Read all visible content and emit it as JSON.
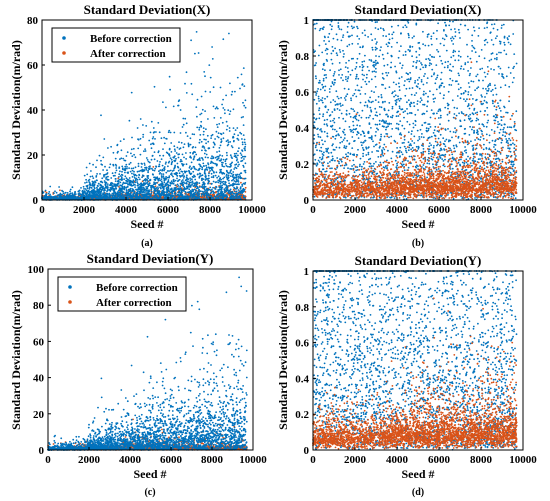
{
  "chart_data": [
    {
      "type": "scatter",
      "panel_label": "(a)",
      "title": "Standard Deviation(X)",
      "xlabel": "Seed #",
      "ylabel": "Standard Deviation(m/rad)",
      "xlim": [
        0,
        10000
      ],
      "ylim": [
        0,
        80
      ],
      "xticks": [
        0,
        2000,
        4000,
        6000,
        8000,
        10000
      ],
      "yticks": [
        0,
        20,
        40,
        60,
        80
      ],
      "x_tick_labels": [
        "0",
        "2000",
        "4000",
        "6000",
        "8000",
        "10000"
      ],
      "y_tick_labels": [
        "0",
        "20",
        "40",
        "60",
        "80"
      ],
      "legend": {
        "placement": "top-left",
        "entries": [
          "Before correction",
          "After correction"
        ]
      },
      "series": [
        {
          "name": "Before correction",
          "color": "#0072BD",
          "points": [
            [
              7100,
              71
            ],
            [
              8100,
              68
            ],
            [
              8900,
              74
            ],
            [
              6100,
              49
            ],
            [
              8500,
              50
            ],
            [
              7600,
              46
            ],
            [
              6600,
              40
            ],
            [
              9300,
              32
            ],
            [
              4700,
              36
            ],
            [
              5300,
              28
            ],
            [
              7900,
              36
            ],
            [
              6300,
              30
            ],
            [
              9500,
              20
            ],
            [
              2100,
              9
            ],
            [
              8800,
              21
            ]
          ]
        },
        {
          "name": "After correction",
          "color": "#D95319",
          "points": [
            [
              500,
              0.3
            ],
            [
              2500,
              0.5
            ],
            [
              5000,
              0.4
            ],
            [
              7500,
              0.6
            ],
            [
              9500,
              0.5
            ]
          ]
        }
      ]
    },
    {
      "type": "scatter",
      "panel_label": "(b)",
      "title": "Standard Deviation(X)",
      "xlabel": "Seed #",
      "ylabel": "Standard Deviation(m/rad)",
      "xlim": [
        0,
        10000
      ],
      "ylim": [
        0,
        1
      ],
      "xticks": [
        0,
        2000,
        4000,
        6000,
        8000,
        10000
      ],
      "yticks": [
        0,
        0.2,
        0.4,
        0.6,
        0.8,
        1
      ],
      "x_tick_labels": [
        "0",
        "2000",
        "4000",
        "6000",
        "8000",
        "10000"
      ],
      "y_tick_labels": [
        "0",
        "0.2",
        "0.4",
        "0.6",
        "0.8",
        "1"
      ],
      "series": [
        {
          "name": "Before correction",
          "color": "#0072BD",
          "points": [
            [
              800,
              0.6
            ],
            [
              1500,
              0.3
            ],
            [
              3000,
              0.8
            ],
            [
              5000,
              0.5
            ],
            [
              7000,
              0.9
            ],
            [
              9000,
              0.7
            ]
          ]
        },
        {
          "name": "After correction",
          "color": "#D95319",
          "points": [
            [
              1000,
              0.05
            ],
            [
              4500,
              0.15
            ],
            [
              6500,
              0.25
            ],
            [
              8000,
              0.3
            ],
            [
              9500,
              0.1
            ]
          ]
        }
      ]
    },
    {
      "type": "scatter",
      "panel_label": "(c)",
      "title": "Standard Deviation(Y)",
      "xlabel": "Seed #",
      "ylabel": "Standard Deviation(m/rad)",
      "xlim": [
        0,
        10000
      ],
      "ylim": [
        0,
        100
      ],
      "xticks": [
        0,
        2000,
        4000,
        6000,
        8000,
        10000
      ],
      "yticks": [
        0,
        20,
        40,
        60,
        80,
        100
      ],
      "x_tick_labels": [
        "0",
        "2000",
        "4000",
        "6000",
        "8000",
        "10000"
      ],
      "y_tick_labels": [
        "0",
        "20",
        "40",
        "60",
        "80",
        "100"
      ],
      "legend": {
        "placement": "top-left",
        "entries": [
          "Before correction",
          "After correction"
        ]
      },
      "series": [
        {
          "name": "Before correction",
          "color": "#0072BD",
          "points": [
            [
              7300,
              82
            ],
            [
              5500,
              48
            ],
            [
              6700,
              53
            ],
            [
              9300,
              56
            ],
            [
              8400,
              44
            ],
            [
              9700,
              55
            ],
            [
              6200,
              40
            ],
            [
              7800,
              38
            ],
            [
              2000,
              14
            ],
            [
              5100,
              30
            ],
            [
              8900,
              35
            ]
          ]
        },
        {
          "name": "After correction",
          "color": "#D95319",
          "points": [
            [
              500,
              0.5
            ],
            [
              3000,
              0.8
            ],
            [
              6000,
              1.0
            ],
            [
              9000,
              1.2
            ]
          ]
        }
      ]
    },
    {
      "type": "scatter",
      "panel_label": "(d)",
      "title": "Standard Deviation(Y)",
      "xlabel": "Seed #",
      "ylabel": "Standard Deviation(m/rad)",
      "xlim": [
        0,
        10000
      ],
      "ylim": [
        0,
        1
      ],
      "xticks": [
        0,
        2000,
        4000,
        6000,
        8000,
        10000
      ],
      "yticks": [
        0,
        0.2,
        0.4,
        0.6,
        0.8,
        1
      ],
      "x_tick_labels": [
        "0",
        "2000",
        "4000",
        "6000",
        "8000",
        "10000"
      ],
      "y_tick_labels": [
        "0",
        "0.2",
        "0.4",
        "0.6",
        "0.8",
        "1"
      ],
      "series": [
        {
          "name": "Before correction",
          "color": "#0072BD",
          "points": [
            [
              700,
              0.7
            ],
            [
              1500,
              0.3
            ],
            [
              3500,
              0.6
            ],
            [
              5500,
              0.4
            ],
            [
              7500,
              0.8
            ],
            [
              9200,
              0.9
            ]
          ]
        },
        {
          "name": "After correction",
          "color": "#D95319",
          "points": [
            [
              1000,
              0.06
            ],
            [
              4000,
              0.12
            ],
            [
              7000,
              0.2
            ],
            [
              8500,
              0.28
            ],
            [
              9500,
              0.1
            ]
          ]
        }
      ]
    }
  ]
}
